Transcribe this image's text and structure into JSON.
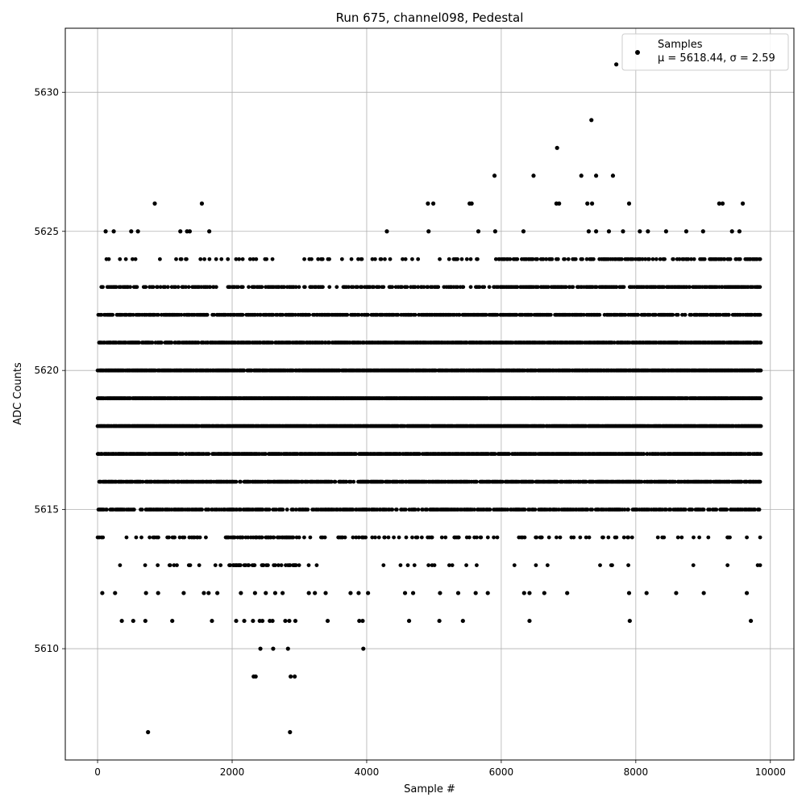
{
  "chart_data": {
    "type": "scatter",
    "title": "Run 675, channel098, Pedestal",
    "xlabel": "Sample #",
    "ylabel": "ADC Counts",
    "xlim": [
      -480,
      10350
    ],
    "ylim": [
      5606.0,
      5632.3
    ],
    "xticks": [
      0,
      2000,
      4000,
      6000,
      8000,
      10000
    ],
    "yticks": [
      5610,
      5615,
      5620,
      5625,
      5630
    ],
    "grid": true,
    "legend_position": "top-right",
    "legend": {
      "series_label": "Samples",
      "stats_text": "μ = 5618.44, σ = 2.59"
    },
    "marker_color": "#000000",
    "series": [
      {
        "name": "Samples",
        "n_points": 9860,
        "dense_band": {
          "sample_range": [
            0,
            9860
          ],
          "levels": [
            5613,
            5614,
            5615,
            5616,
            5617,
            5618,
            5619,
            5620,
            5621,
            5622,
            5623,
            5624
          ],
          "level_density": [
            0.05,
            0.18,
            0.55,
            0.68,
            0.82,
            0.92,
            0.95,
            0.88,
            0.72,
            0.55,
            0.38,
            0.12
          ]
        },
        "points": [
          [
            750,
            5607
          ],
          [
            2860,
            5607
          ],
          [
            2320,
            5609
          ],
          [
            2350,
            5609
          ],
          [
            2870,
            5609
          ],
          [
            2930,
            5609
          ],
          [
            2420,
            5610
          ],
          [
            2610,
            5610
          ],
          [
            2830,
            5610
          ],
          [
            3950,
            5610
          ],
          [
            360,
            5611
          ],
          [
            530,
            5611
          ],
          [
            710,
            5611
          ],
          [
            1110,
            5611
          ],
          [
            1700,
            5611
          ],
          [
            2060,
            5611
          ],
          [
            2180,
            5611
          ],
          [
            2310,
            5611
          ],
          [
            2410,
            5611
          ],
          [
            2450,
            5611
          ],
          [
            2560,
            5611
          ],
          [
            2600,
            5611
          ],
          [
            2790,
            5611
          ],
          [
            2850,
            5611
          ],
          [
            2940,
            5611
          ],
          [
            3420,
            5611
          ],
          [
            3890,
            5611
          ],
          [
            3940,
            5611
          ],
          [
            4630,
            5611
          ],
          [
            5080,
            5611
          ],
          [
            5430,
            5611
          ],
          [
            6420,
            5611
          ],
          [
            7910,
            5611
          ],
          [
            9710,
            5611
          ],
          [
            70,
            5612
          ],
          [
            260,
            5612
          ],
          [
            720,
            5612
          ],
          [
            900,
            5612
          ],
          [
            1280,
            5612
          ],
          [
            1580,
            5612
          ],
          [
            1650,
            5612
          ],
          [
            1780,
            5612
          ],
          [
            2130,
            5612
          ],
          [
            2340,
            5612
          ],
          [
            2500,
            5612
          ],
          [
            2640,
            5612
          ],
          [
            2750,
            5612
          ],
          [
            3140,
            5612
          ],
          [
            3230,
            5612
          ],
          [
            3390,
            5612
          ],
          [
            3760,
            5612
          ],
          [
            3880,
            5612
          ],
          [
            4020,
            5612
          ],
          [
            4570,
            5612
          ],
          [
            4690,
            5612
          ],
          [
            5090,
            5612
          ],
          [
            5360,
            5612
          ],
          [
            5620,
            5612
          ],
          [
            5800,
            5612
          ],
          [
            6340,
            5612
          ],
          [
            6420,
            5612
          ],
          [
            6640,
            5612
          ],
          [
            6980,
            5612
          ],
          [
            7900,
            5612
          ],
          [
            8160,
            5612
          ],
          [
            8600,
            5612
          ],
          [
            9010,
            5612
          ],
          [
            9650,
            5612
          ],
          [
            8060,
            5625
          ],
          [
            8180,
            5625
          ],
          [
            8450,
            5625
          ],
          [
            8750,
            5625
          ],
          [
            9000,
            5625
          ],
          [
            9430,
            5625
          ],
          [
            9540,
            5625
          ],
          [
            7810,
            5625
          ],
          [
            7600,
            5625
          ],
          [
            7410,
            5625
          ],
          [
            7300,
            5625
          ],
          [
            6330,
            5625
          ],
          [
            5910,
            5625
          ],
          [
            5660,
            5625
          ],
          [
            4920,
            5625
          ],
          [
            4300,
            5625
          ],
          [
            1660,
            5625
          ],
          [
            1370,
            5625
          ],
          [
            1330,
            5625
          ],
          [
            1230,
            5625
          ],
          [
            600,
            5625
          ],
          [
            500,
            5625
          ],
          [
            240,
            5625
          ],
          [
            120,
            5625
          ],
          [
            850,
            5626
          ],
          [
            1550,
            5626
          ],
          [
            4910,
            5626
          ],
          [
            4990,
            5626
          ],
          [
            5530,
            5626
          ],
          [
            5560,
            5626
          ],
          [
            6820,
            5626
          ],
          [
            6860,
            5626
          ],
          [
            7280,
            5626
          ],
          [
            7350,
            5626
          ],
          [
            7900,
            5626
          ],
          [
            9240,
            5626
          ],
          [
            9290,
            5626
          ],
          [
            9590,
            5626
          ],
          [
            5900,
            5627
          ],
          [
            6480,
            5627
          ],
          [
            7190,
            5627
          ],
          [
            7410,
            5627
          ],
          [
            7660,
            5627
          ],
          [
            6830,
            5628
          ],
          [
            7340,
            5629
          ],
          [
            7710,
            5631
          ]
        ]
      }
    ]
  }
}
